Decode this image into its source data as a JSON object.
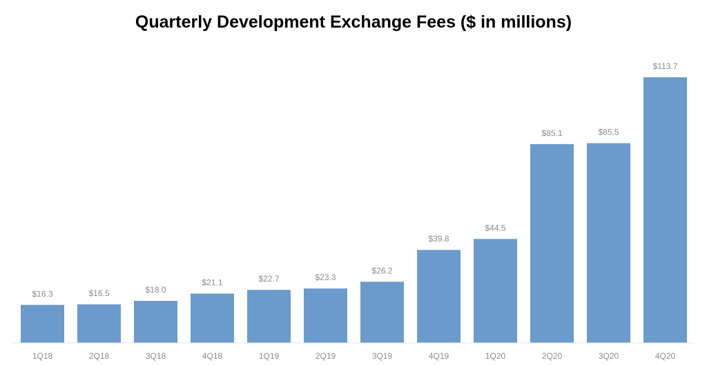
{
  "chart_data": {
    "type": "bar",
    "title": "Quarterly Development Exchange Fees ($ in millions)",
    "xlabel": "",
    "ylabel": "",
    "categories": [
      "1Q18",
      "2Q18",
      "3Q18",
      "4Q18",
      "1Q19",
      "2Q19",
      "3Q19",
      "4Q19",
      "1Q20",
      "2Q20",
      "3Q20",
      "4Q20"
    ],
    "values": [
      16.3,
      16.5,
      18.0,
      21.1,
      22.7,
      23.3,
      26.2,
      39.8,
      44.5,
      85.1,
      85.5,
      113.7
    ],
    "value_labels": [
      "$16.3",
      "$16.5",
      "$18.0",
      "$21.1",
      "$22.7",
      "$23.3",
      "$26.2",
      "$39.8",
      "$44.5",
      "$85.1",
      "$85.5",
      "$113.7"
    ],
    "ylim": [
      0,
      113.7
    ],
    "grid": false,
    "legend": "none",
    "bar_color": "#6b9bcd",
    "label_color": "#8c8c8c"
  }
}
